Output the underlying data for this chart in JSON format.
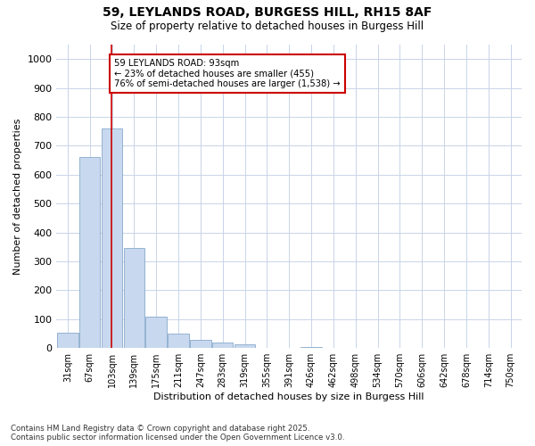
{
  "title_line1": "59, LEYLANDS ROAD, BURGESS HILL, RH15 8AF",
  "title_line2": "Size of property relative to detached houses in Burgess Hill",
  "xlabel": "Distribution of detached houses by size in Burgess Hill",
  "ylabel": "Number of detached properties",
  "categories": [
    "31sqm",
    "67sqm",
    "103sqm",
    "139sqm",
    "175sqm",
    "211sqm",
    "247sqm",
    "283sqm",
    "319sqm",
    "355sqm",
    "391sqm",
    "426sqm",
    "462sqm",
    "498sqm",
    "534sqm",
    "570sqm",
    "606sqm",
    "642sqm",
    "678sqm",
    "714sqm",
    "750sqm"
  ],
  "values": [
    52,
    660,
    760,
    345,
    110,
    50,
    28,
    18,
    12,
    0,
    0,
    5,
    0,
    0,
    0,
    0,
    0,
    0,
    0,
    0,
    0
  ],
  "bar_color": "#c8d8ee",
  "bar_edge_color": "#88aacc",
  "grid_color": "#c8d4e8",
  "vline_x": 1.97,
  "vline_color": "#cc0000",
  "annotation_text_line1": "59 LEYLANDS ROAD: 93sqm",
  "annotation_text_line2": "← 23% of detached houses are smaller (455)",
  "annotation_text_line3": "76% of semi-detached houses are larger (1,538) →",
  "annotation_box_edge": "#cc0000",
  "ylim": [
    0,
    1050
  ],
  "yticks": [
    0,
    100,
    200,
    300,
    400,
    500,
    600,
    700,
    800,
    900,
    1000
  ],
  "footer_line1": "Contains HM Land Registry data © Crown copyright and database right 2025.",
  "footer_line2": "Contains public sector information licensed under the Open Government Licence v3.0.",
  "bg_color": "#ffffff"
}
